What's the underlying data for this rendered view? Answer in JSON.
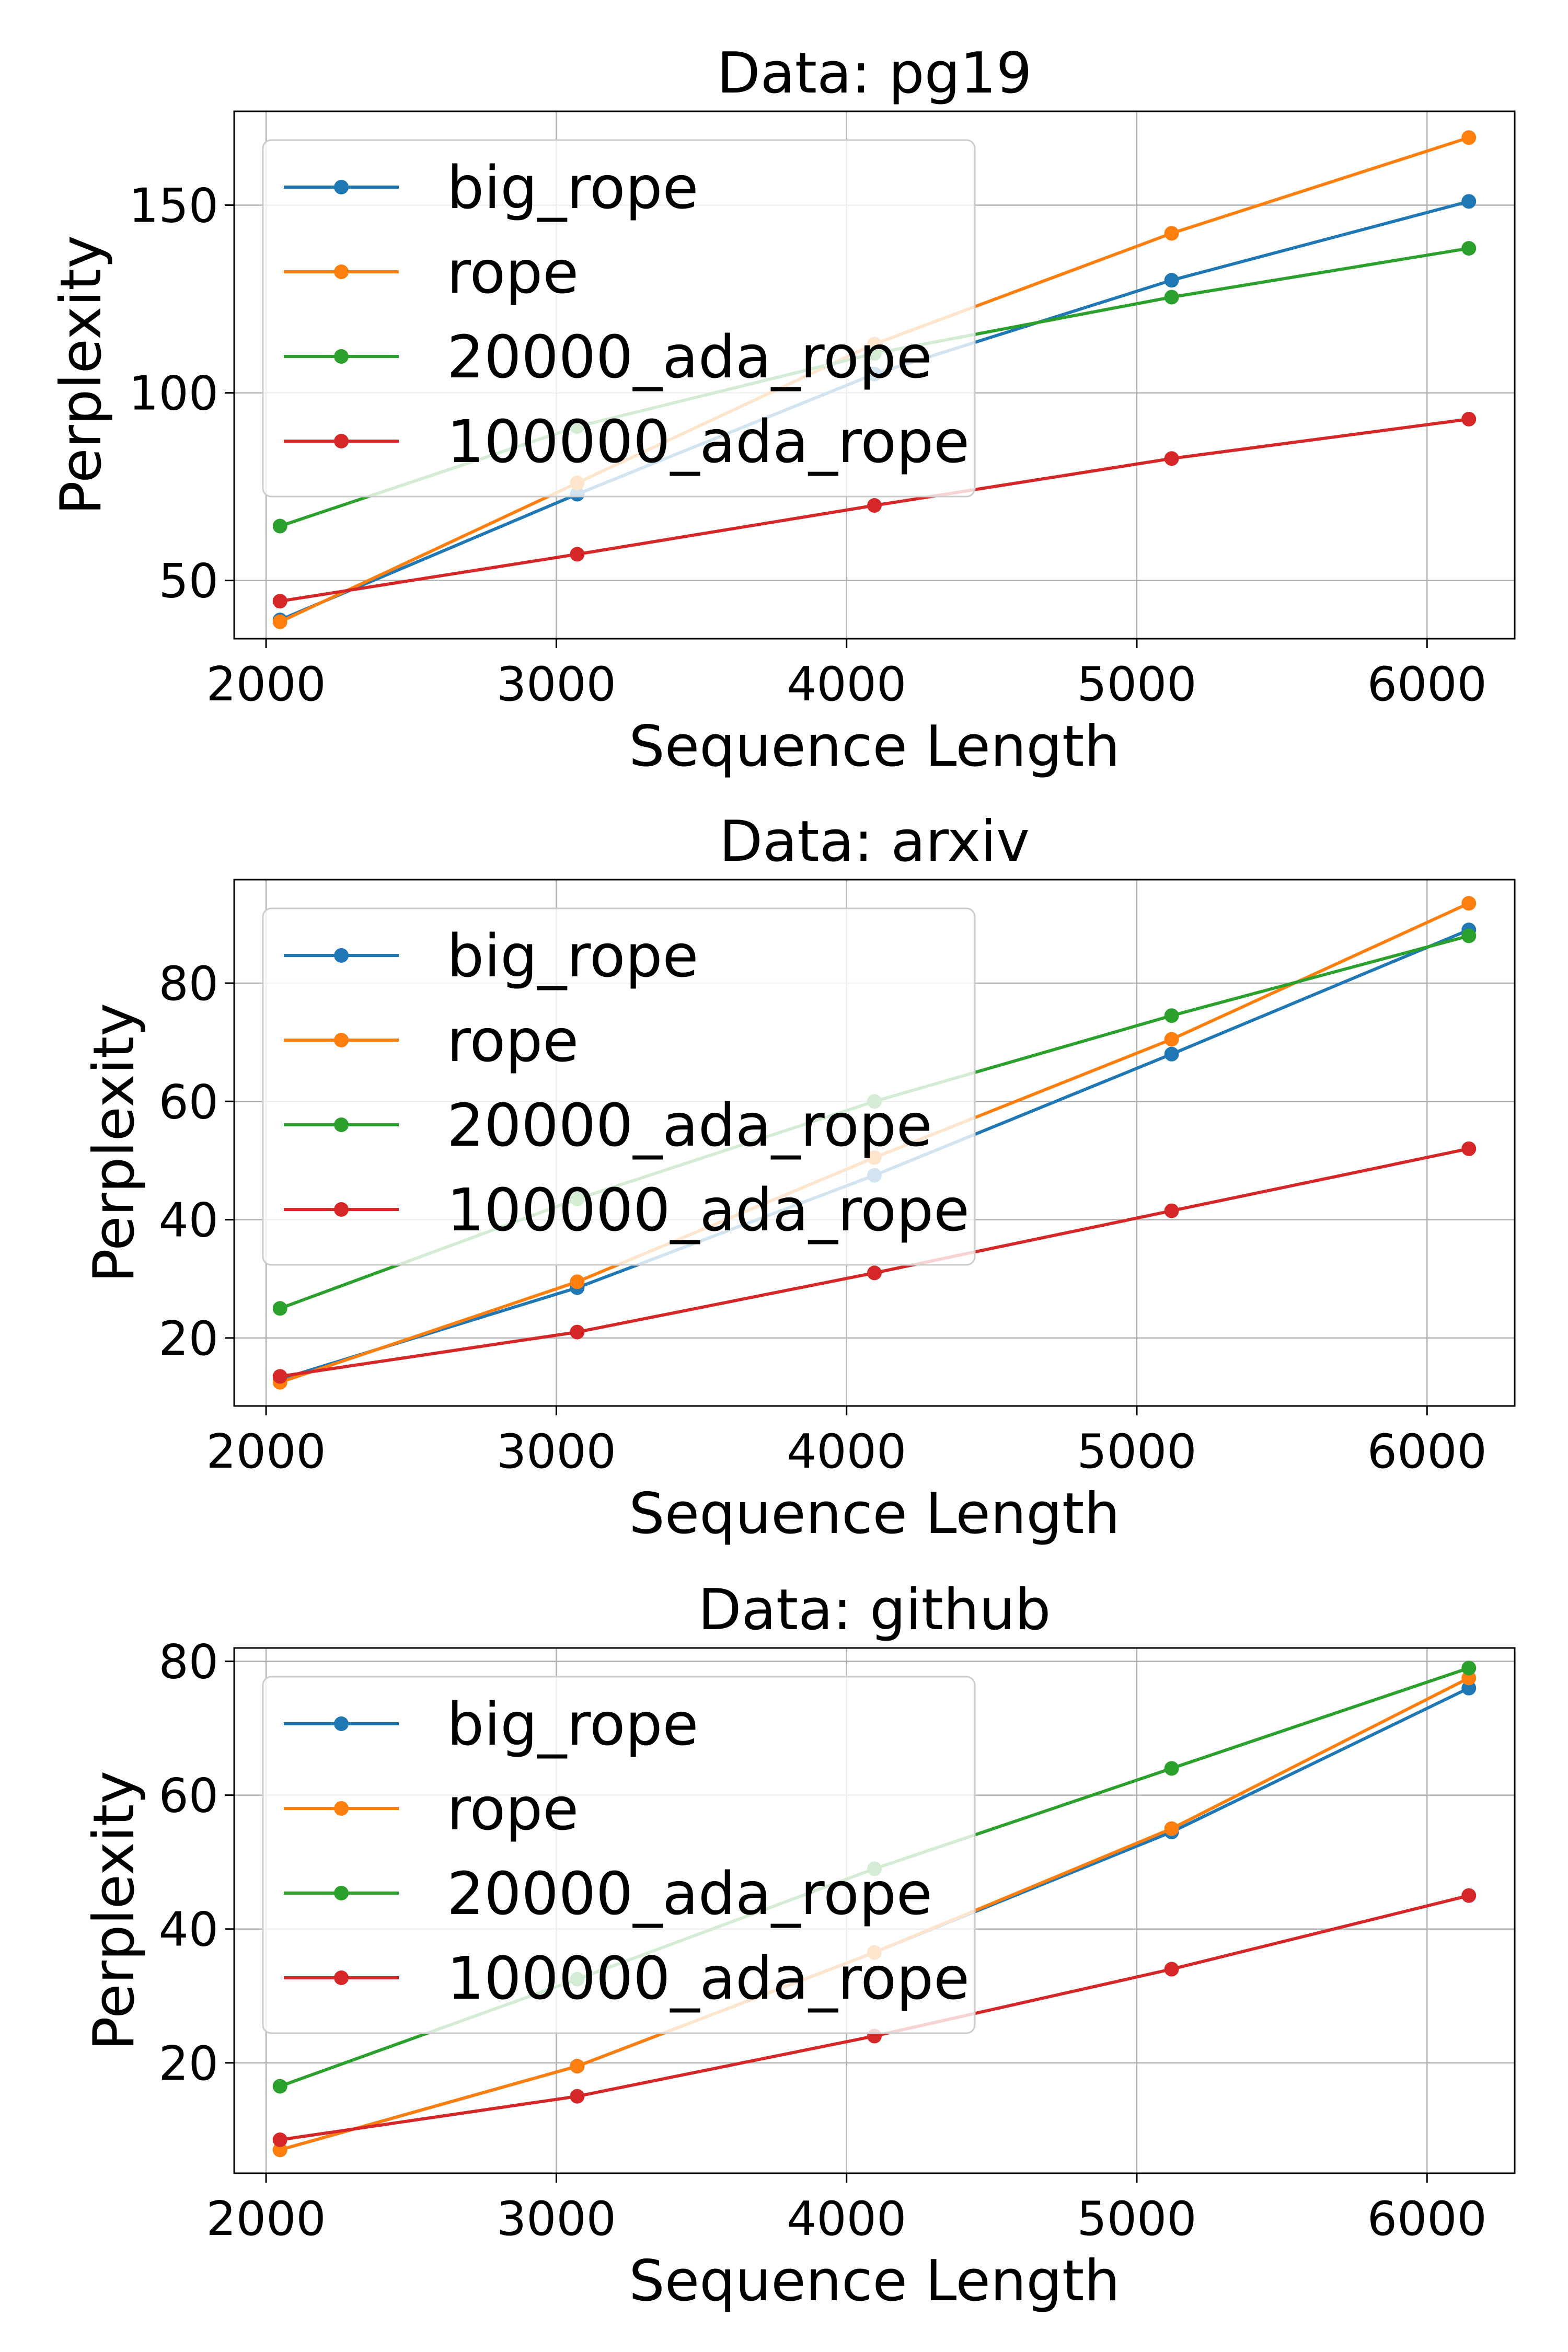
{
  "colors": {
    "big_rope": "#1f77b4",
    "rope": "#ff7f0e",
    "20000_ada_rope": "#2ca02c",
    "100000_ada_rope": "#d62728"
  },
  "chart_data": [
    {
      "type": "line",
      "title": "Data: pg19",
      "xlabel": "Sequence Length",
      "ylabel": "Perplexity",
      "x": [
        2048,
        3072,
        4096,
        5120,
        6144
      ],
      "xlim": [
        1890,
        6302
      ],
      "ylim": [
        34.5,
        175
      ],
      "xticks": [
        2000,
        3000,
        4000,
        5000,
        6000
      ],
      "yticks": [
        50,
        100,
        150
      ],
      "grid": true,
      "legend_position": "upper-left",
      "series": [
        {
          "name": "big_rope",
          "values": [
            39.5,
            73,
            105,
            130,
            151
          ]
        },
        {
          "name": "rope",
          "values": [
            39,
            76,
            113,
            142.5,
            168
          ]
        },
        {
          "name": "20000_ada_rope",
          "values": [
            64.5,
            91,
            110.5,
            125.5,
            138.5
          ]
        },
        {
          "name": "100000_ada_rope",
          "values": [
            44.5,
            57,
            70,
            82.5,
            93
          ]
        }
      ]
    },
    {
      "type": "line",
      "title": "Data: arxiv",
      "xlabel": "Sequence Length",
      "ylabel": "Perplexity",
      "x": [
        2048,
        3072,
        4096,
        5120,
        6144
      ],
      "xlim": [
        1890,
        6302
      ],
      "ylim": [
        8.5,
        97.5
      ],
      "xticks": [
        2000,
        3000,
        4000,
        5000,
        6000
      ],
      "yticks": [
        20,
        40,
        60,
        80
      ],
      "grid": true,
      "legend_position": "upper-left",
      "series": [
        {
          "name": "big_rope",
          "values": [
            13,
            28.5,
            47.5,
            68,
            89
          ]
        },
        {
          "name": "rope",
          "values": [
            12.5,
            29.5,
            50.5,
            70.5,
            93.5
          ]
        },
        {
          "name": "20000_ada_rope",
          "values": [
            25,
            43.5,
            60,
            74.5,
            88
          ]
        },
        {
          "name": "100000_ada_rope",
          "values": [
            13.5,
            21,
            31,
            41.5,
            52
          ]
        }
      ]
    },
    {
      "type": "line",
      "title": "Data: github",
      "xlabel": "Sequence Length",
      "ylabel": "Perplexity",
      "x": [
        2048,
        3072,
        4096,
        5120,
        6144
      ],
      "xlim": [
        1890,
        6302
      ],
      "ylim": [
        3.5,
        82
      ],
      "xticks": [
        2000,
        3000,
        4000,
        5000,
        6000
      ],
      "yticks": [
        20,
        40,
        60,
        80
      ],
      "grid": true,
      "legend_position": "upper-left",
      "series": [
        {
          "name": "big_rope",
          "values": [
            7,
            19.5,
            36.5,
            54.5,
            76
          ]
        },
        {
          "name": "rope",
          "values": [
            7,
            19.5,
            36.5,
            55,
            77.5
          ]
        },
        {
          "name": "20000_ada_rope",
          "values": [
            16.5,
            32.5,
            49,
            64,
            79
          ]
        },
        {
          "name": "100000_ada_rope",
          "values": [
            8.5,
            15,
            24,
            34,
            45
          ]
        }
      ]
    }
  ]
}
